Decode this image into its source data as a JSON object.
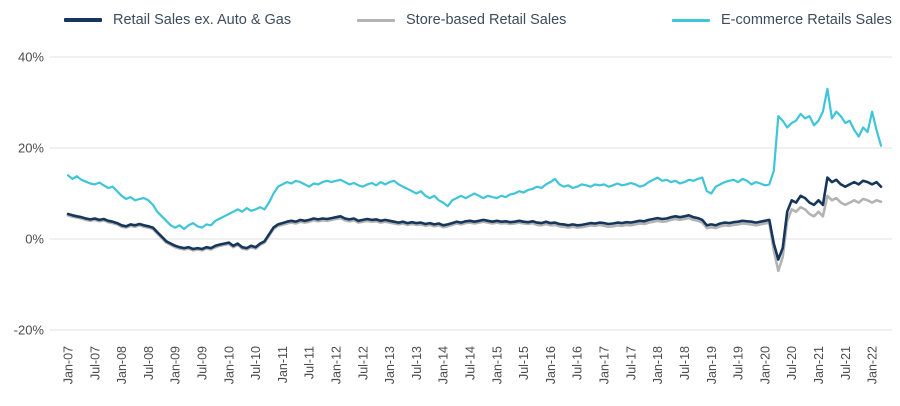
{
  "legend": [
    {
      "label": "Retail Sales ex. Auto & Gas",
      "color": "#16365c"
    },
    {
      "label": "Store-based Retail Sales",
      "color": "#b3b3b3"
    },
    {
      "label": "E-commerce Retails Sales",
      "color": "#3fc5d8"
    }
  ],
  "axes": {
    "y_unit": "%",
    "y_tick_labels": [
      "40%",
      "20%",
      "0%",
      "-20%"
    ],
    "grid_color": "#e0e0e0",
    "tick_text_color": "#4d4d4d"
  },
  "chart_data": {
    "type": "line",
    "x_start": "2007-01",
    "x_interval": "monthly",
    "x_tick_every_months": 6,
    "x_tick_labels": [
      "Jan-07",
      "Jul-07",
      "Jan-08",
      "Jul-08",
      "Jan-09",
      "Jul-09",
      "Jan-10",
      "Jul-10",
      "Jan-11",
      "Jul-11",
      "Jan-12",
      "Jul-12",
      "Jan-13",
      "Jul-13",
      "Jan-14",
      "Jul-14",
      "Jan-15",
      "Jul-15",
      "Jan-16",
      "Jul-16",
      "Jan-17",
      "Jul-17",
      "Jan-18",
      "Jul-18",
      "Jan-19",
      "Jul-19",
      "Jan-20",
      "Jul-20",
      "Jan-21",
      "Jul-21",
      "Jan-22"
    ],
    "y_ticks": [
      40,
      20,
      0,
      -20
    ],
    "ylim": [
      -24,
      44
    ],
    "grid": true,
    "legend_position": "top",
    "series": [
      {
        "name": "Retail Sales ex. Auto & Gas",
        "color": "#16365c",
        "width": 2.6,
        "values": [
          5.5,
          5.2,
          5.0,
          4.8,
          4.5,
          4.3,
          4.5,
          4.2,
          4.4,
          4.0,
          3.8,
          3.5,
          3.0,
          2.8,
          3.2,
          3.0,
          3.3,
          3.0,
          2.8,
          2.5,
          1.5,
          0.5,
          -0.5,
          -1.0,
          -1.5,
          -1.8,
          -2.0,
          -1.8,
          -2.2,
          -2.0,
          -2.2,
          -1.8,
          -2.0,
          -1.5,
          -1.2,
          -1.0,
          -0.8,
          -1.5,
          -1.0,
          -1.8,
          -2.0,
          -1.5,
          -1.8,
          -1.0,
          -0.5,
          1.0,
          2.5,
          3.2,
          3.5,
          3.8,
          4.0,
          3.8,
          4.2,
          4.0,
          4.2,
          4.5,
          4.3,
          4.5,
          4.4,
          4.6,
          4.8,
          5.0,
          4.5,
          4.3,
          4.5,
          4.0,
          4.2,
          4.4,
          4.2,
          4.3,
          4.0,
          4.2,
          4.0,
          3.8,
          3.6,
          3.8,
          3.5,
          3.7,
          3.5,
          3.6,
          3.3,
          3.5,
          3.2,
          3.4,
          3.0,
          3.2,
          3.5,
          3.8,
          3.6,
          3.9,
          4.0,
          3.8,
          4.0,
          4.2,
          4.0,
          3.8,
          4.0,
          3.8,
          3.9,
          3.7,
          3.8,
          4.0,
          3.8,
          3.7,
          3.9,
          3.6,
          3.5,
          3.8,
          3.5,
          3.6,
          3.3,
          3.2,
          3.0,
          3.2,
          3.0,
          3.1,
          3.3,
          3.5,
          3.4,
          3.6,
          3.5,
          3.3,
          3.4,
          3.6,
          3.5,
          3.7,
          3.6,
          3.8,
          4.0,
          3.9,
          4.2,
          4.4,
          4.6,
          4.4,
          4.5,
          4.8,
          5.0,
          4.8,
          5.0,
          5.2,
          4.8,
          4.6,
          4.2,
          3.0,
          3.2,
          3.0,
          3.4,
          3.6,
          3.5,
          3.7,
          3.8,
          4.0,
          3.9,
          3.8,
          3.6,
          3.8,
          4.0,
          4.2,
          -1.0,
          -4.5,
          -2.0,
          6.0,
          8.5,
          8.0,
          9.5,
          9.0,
          8.0,
          7.5,
          8.5,
          7.5,
          13.5,
          12.5,
          13.0,
          12.0,
          11.5,
          12.0,
          12.5,
          12.0,
          12.8,
          12.5,
          12.0,
          12.5,
          11.5
        ]
      },
      {
        "name": "Store-based Retail Sales",
        "color": "#b3b3b3",
        "width": 2.6,
        "values": [
          5.2,
          4.9,
          4.7,
          4.5,
          4.2,
          4.0,
          4.2,
          3.9,
          4.1,
          3.7,
          3.5,
          3.2,
          2.7,
          2.5,
          2.9,
          2.7,
          3.0,
          2.7,
          2.5,
          2.2,
          1.2,
          0.2,
          -0.8,
          -1.3,
          -1.8,
          -2.1,
          -2.3,
          -2.1,
          -2.5,
          -2.3,
          -2.5,
          -2.1,
          -2.3,
          -1.8,
          -1.5,
          -1.3,
          -1.1,
          -1.8,
          -1.3,
          -2.1,
          -2.3,
          -1.8,
          -2.1,
          -1.3,
          -0.8,
          0.7,
          2.2,
          2.9,
          3.1,
          3.4,
          3.6,
          3.4,
          3.8,
          3.6,
          3.8,
          4.1,
          3.9,
          4.1,
          4.0,
          4.2,
          4.4,
          4.6,
          4.1,
          3.9,
          4.1,
          3.6,
          3.8,
          4.0,
          3.8,
          3.9,
          3.6,
          3.8,
          3.6,
          3.4,
          3.2,
          3.4,
          3.1,
          3.3,
          3.1,
          3.2,
          2.9,
          3.1,
          2.8,
          3.0,
          2.6,
          2.8,
          3.1,
          3.4,
          3.2,
          3.5,
          3.6,
          3.4,
          3.6,
          3.8,
          3.6,
          3.4,
          3.6,
          3.4,
          3.5,
          3.3,
          3.4,
          3.6,
          3.4,
          3.3,
          3.5,
          3.1,
          3.0,
          3.3,
          3.0,
          3.1,
          2.8,
          2.7,
          2.5,
          2.7,
          2.5,
          2.6,
          2.8,
          3.0,
          2.9,
          3.1,
          2.9,
          2.7,
          2.8,
          3.0,
          2.9,
          3.1,
          3.0,
          3.2,
          3.4,
          3.3,
          3.6,
          3.8,
          4.0,
          3.8,
          3.9,
          4.2,
          4.4,
          4.2,
          4.4,
          4.6,
          4.2,
          4.0,
          3.6,
          2.4,
          2.6,
          2.4,
          2.8,
          3.0,
          2.9,
          3.1,
          3.2,
          3.4,
          3.3,
          3.2,
          3.0,
          3.2,
          3.4,
          3.6,
          -2.5,
          -7.0,
          -4.0,
          4.0,
          6.5,
          6.0,
          7.0,
          6.5,
          5.5,
          5.0,
          6.0,
          5.0,
          9.5,
          8.5,
          9.0,
          8.0,
          7.5,
          8.0,
          8.5,
          8.0,
          8.8,
          8.5,
          8.0,
          8.5,
          8.2
        ]
      },
      {
        "name": "E-commerce Retails Sales",
        "color": "#3fc5d8",
        "width": 2.2,
        "values": [
          14.0,
          13.2,
          13.8,
          13.0,
          12.6,
          12.2,
          12.0,
          12.4,
          11.8,
          11.2,
          11.5,
          10.5,
          9.5,
          8.8,
          9.2,
          8.5,
          8.8,
          9.0,
          8.5,
          7.5,
          6.0,
          5.0,
          4.0,
          3.0,
          2.5,
          3.0,
          2.2,
          3.0,
          3.5,
          2.8,
          2.5,
          3.2,
          3.0,
          4.0,
          4.5,
          5.0,
          5.5,
          6.0,
          6.5,
          6.0,
          6.8,
          6.2,
          6.5,
          7.0,
          6.5,
          8.0,
          10.0,
          11.5,
          12.0,
          12.5,
          12.2,
          12.8,
          12.5,
          12.0,
          11.5,
          12.2,
          12.0,
          12.5,
          12.8,
          12.5,
          12.8,
          13.0,
          12.5,
          12.0,
          12.3,
          11.8,
          11.5,
          12.0,
          12.3,
          11.8,
          12.5,
          12.0,
          12.5,
          12.8,
          12.0,
          11.5,
          11.0,
          10.5,
          10.0,
          10.5,
          9.5,
          9.0,
          9.5,
          8.5,
          8.0,
          7.2,
          8.5,
          9.0,
          9.5,
          9.0,
          9.5,
          10.0,
          9.5,
          9.0,
          9.5,
          9.2,
          9.0,
          9.5,
          9.2,
          9.8,
          10.0,
          10.5,
          10.2,
          10.8,
          11.0,
          11.5,
          11.2,
          12.0,
          12.5,
          13.2,
          12.0,
          11.5,
          11.8,
          11.2,
          11.5,
          12.0,
          11.8,
          11.5,
          12.0,
          11.8,
          12.0,
          11.5,
          11.8,
          12.2,
          11.8,
          12.0,
          12.3,
          12.0,
          11.5,
          11.8,
          12.5,
          13.0,
          13.5,
          12.8,
          13.0,
          12.5,
          12.8,
          12.2,
          12.5,
          13.0,
          12.8,
          13.2,
          13.5,
          10.5,
          10.0,
          11.5,
          12.0,
          12.5,
          12.8,
          13.0,
          12.5,
          13.2,
          12.8,
          12.0,
          12.5,
          12.2,
          11.8,
          12.0,
          15.0,
          27.0,
          26.0,
          24.5,
          25.5,
          26.0,
          27.5,
          26.5,
          27.0,
          25.0,
          26.0,
          28.0,
          33.0,
          26.5,
          28.0,
          27.0,
          25.5,
          26.0,
          24.0,
          22.5,
          24.5,
          23.5,
          28.0,
          24.0,
          20.5
        ]
      }
    ]
  }
}
